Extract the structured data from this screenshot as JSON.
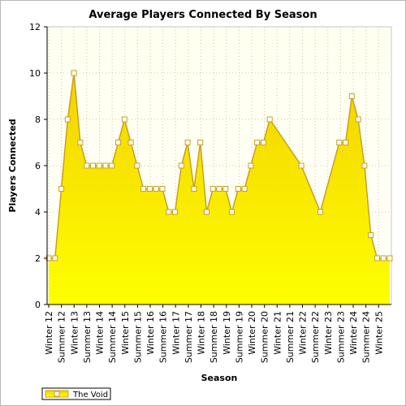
{
  "chart_data": {
    "type": "area",
    "title": "Average Players Connected By Season",
    "xlabel": "Season",
    "ylabel": "Players Connected",
    "ylim": [
      0,
      12
    ],
    "yticks": [
      0,
      2,
      4,
      6,
      8,
      10,
      12
    ],
    "grid": true,
    "legend_position": "bottom-left",
    "colors": {
      "fill_top": "#f2d200",
      "fill_bottom": "#ffff00",
      "line": "#c8a020",
      "marker_fill": "#ffffff",
      "plot_bg_top": "#fffff0",
      "plot_bg_bottom": "#fffff8",
      "grid": "#c8c8a0"
    },
    "x_labels": [
      "Winter 12",
      "Summer 12",
      "Winter 13",
      "Summer 13",
      "Winter 14",
      "Summer 14",
      "Winter 15",
      "Summer 15",
      "Winter 16",
      "Summer 16",
      "Winter 17",
      "Summer 17",
      "Winter 18",
      "Summer 18",
      "Winter 19",
      "Summer 19",
      "Winter 20",
      "Summer 20",
      "Winter 21",
      "Summer 21",
      "Winter 22",
      "Summer 22",
      "Winter 23",
      "Summer 23",
      "Winter 24",
      "Summer 24",
      "Winter 25"
    ],
    "series": [
      {
        "name": "The Void",
        "points": [
          {
            "x": 0.0,
            "y": 2
          },
          {
            "x": 0.5,
            "y": 2
          },
          {
            "x": 1.0,
            "y": 5
          },
          {
            "x": 1.5,
            "y": 8
          },
          {
            "x": 2.0,
            "y": 10
          },
          {
            "x": 2.5,
            "y": 7
          },
          {
            "x": 3.0,
            "y": 6
          },
          {
            "x": 3.5,
            "y": 6
          },
          {
            "x": 4.0,
            "y": 6
          },
          {
            "x": 4.5,
            "y": 6
          },
          {
            "x": 5.0,
            "y": 6
          },
          {
            "x": 5.5,
            "y": 7
          },
          {
            "x": 6.0,
            "y": 8
          },
          {
            "x": 6.5,
            "y": 7
          },
          {
            "x": 7.0,
            "y": 6
          },
          {
            "x": 7.5,
            "y": 5
          },
          {
            "x": 8.0,
            "y": 5
          },
          {
            "x": 8.5,
            "y": 5
          },
          {
            "x": 9.0,
            "y": 5
          },
          {
            "x": 9.5,
            "y": 4
          },
          {
            "x": 10.0,
            "y": 4
          },
          {
            "x": 10.5,
            "y": 6
          },
          {
            "x": 11.0,
            "y": 7
          },
          {
            "x": 11.5,
            "y": 5
          },
          {
            "x": 12.0,
            "y": 7
          },
          {
            "x": 12.5,
            "y": 4
          },
          {
            "x": 13.0,
            "y": 5
          },
          {
            "x": 13.5,
            "y": 5
          },
          {
            "x": 14.0,
            "y": 5
          },
          {
            "x": 14.5,
            "y": 4
          },
          {
            "x": 15.0,
            "y": 5
          },
          {
            "x": 15.5,
            "y": 5
          },
          {
            "x": 16.0,
            "y": 6
          },
          {
            "x": 16.5,
            "y": 7
          },
          {
            "x": 17.0,
            "y": 7
          },
          {
            "x": 17.5,
            "y": 8
          },
          {
            "x": 20.0,
            "y": 6
          },
          {
            "x": 21.5,
            "y": 4
          },
          {
            "x": 23.0,
            "y": 7
          },
          {
            "x": 23.5,
            "y": 7
          },
          {
            "x": 24.0,
            "y": 9
          },
          {
            "x": 24.5,
            "y": 8
          },
          {
            "x": 25.0,
            "y": 6
          },
          {
            "x": 25.5,
            "y": 3
          },
          {
            "x": 26.0,
            "y": 2
          },
          {
            "x": 26.5,
            "y": 2
          },
          {
            "x": 27.0,
            "y": 2
          }
        ]
      }
    ]
  }
}
